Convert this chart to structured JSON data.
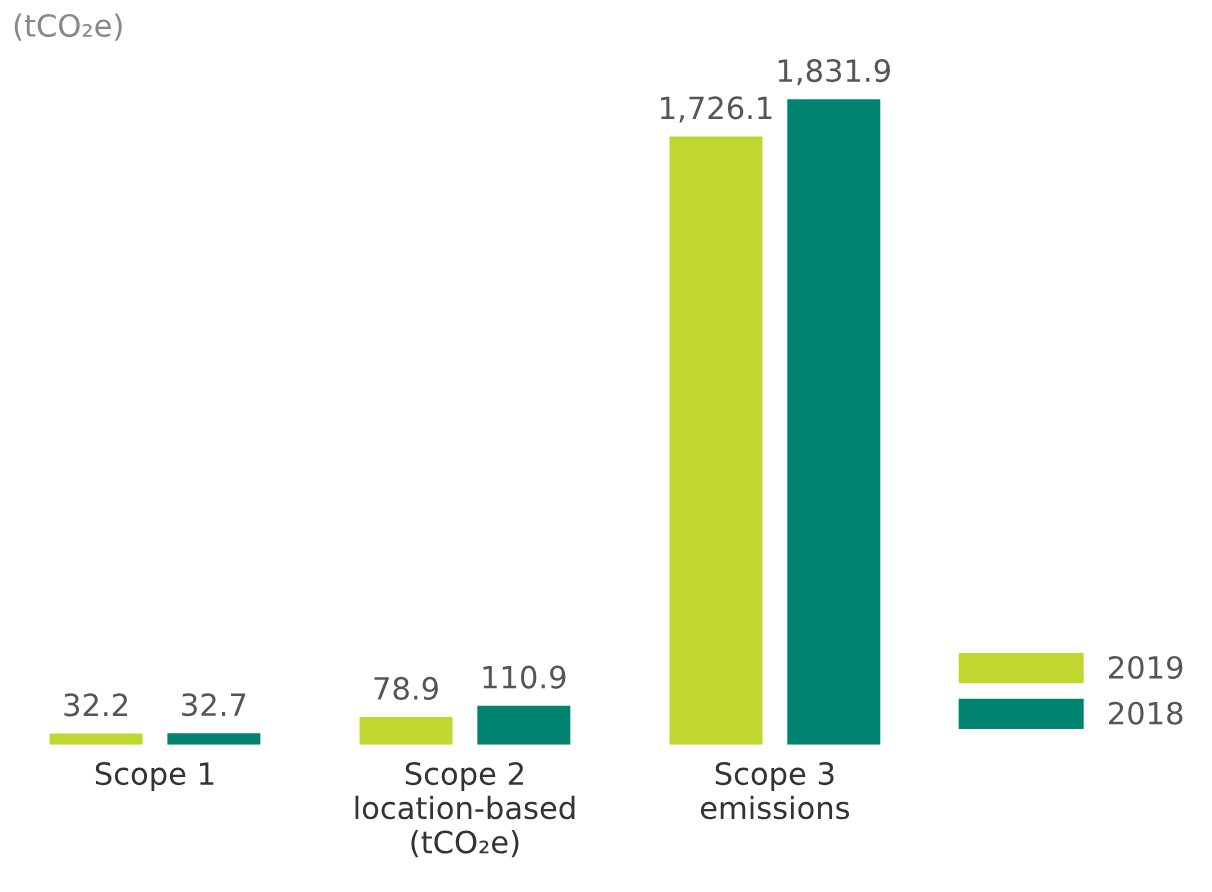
{
  "chart_data": {
    "type": "bar",
    "ylabel": "(tCO₂e)",
    "categories": [
      "Scope 1",
      "Scope 2\nlocation-based\n(tCO₂e)",
      "Scope 3\nemissions"
    ],
    "series": [
      {
        "name": "2019",
        "color": "#c0d72f",
        "values": [
          32.2,
          78.9,
          1726.1
        ],
        "value_labels": [
          "32.2",
          "78.9",
          "1,726.1"
        ]
      },
      {
        "name": "2018",
        "color": "#00836f",
        "values": [
          32.7,
          110.9,
          1831.9
        ],
        "value_labels": [
          "32.7",
          "110.9",
          "1,831.9"
        ]
      }
    ],
    "legend": "bottom right"
  }
}
